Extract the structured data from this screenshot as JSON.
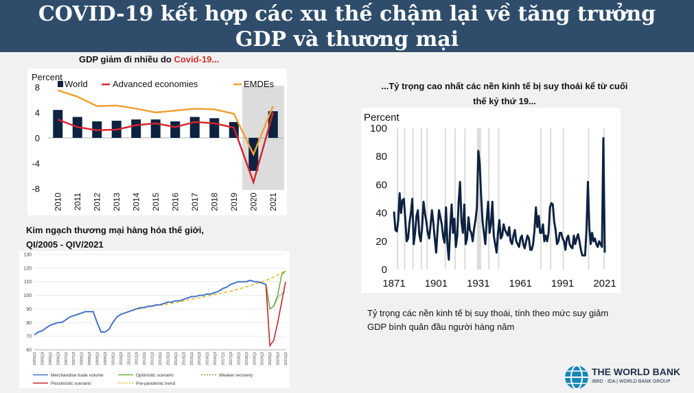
{
  "slide": {
    "title_line1": "COVID-19 kết hợp các xu thế chậm lại về tăng trưởng",
    "title_line2": "GDP và thương mại"
  },
  "chart1_heading_prefix": "GDP giảm đi nhiều do ",
  "chart1_heading_highlight": "Covid-19...",
  "chart2_heading_line1": "Kim ngạch thương mại hàng hóa thế giới,",
  "chart2_heading_line2": "QI/2005 - QIV/2021",
  "chart3_heading_line1": "...Tỷ trọng cao nhất các nền kinh tế bị suy thoái kể từ cuối",
  "chart3_heading_line2": "thế kỷ thứ 19...",
  "chart3_note_line1": "Tỷ trọng các nền kinh tế bị suy thoái, tính theo mức suy giảm",
  "chart3_note_line2": "GDP bình quân đầu người hàng năm",
  "logo": {
    "name": "THE WORLD BANK",
    "sub": "IBRD · IDA | WORLD BANK GROUP"
  },
  "chart_data": [
    {
      "id": "gdp",
      "type": "bar",
      "ylabel": "Percent",
      "ylim": [
        -8,
        8
      ],
      "yticks": [
        8,
        4,
        0,
        -4,
        -8
      ],
      "categories": [
        "2010",
        "2011",
        "2012",
        "2013",
        "2014",
        "2015",
        "2016",
        "2017",
        "2018",
        "2019",
        "2020",
        "2021"
      ],
      "series": [
        {
          "name": "World",
          "type": "bar",
          "color": "#0d2240",
          "values": [
            4.4,
            3.3,
            2.6,
            2.7,
            2.9,
            2.9,
            2.6,
            3.3,
            3.1,
            2.5,
            -5.2,
            4.2
          ]
        },
        {
          "name": "Advanced economies",
          "type": "line",
          "color": "#d4252f",
          "values": [
            2.9,
            1.7,
            1.2,
            1.3,
            2.0,
            2.3,
            1.7,
            2.5,
            2.3,
            1.6,
            -7.0,
            4.0
          ]
        },
        {
          "name": "EMDEs",
          "type": "line",
          "color": "#f0a030",
          "values": [
            7.5,
            6.5,
            5.0,
            5.1,
            4.6,
            4.0,
            4.3,
            4.6,
            4.5,
            3.8,
            -2.6,
            5.0
          ]
        }
      ],
      "shaded_category": "2020",
      "legend": "top"
    },
    {
      "id": "trade",
      "type": "line",
      "ylim": [
        60,
        130
      ],
      "yticks": [
        130,
        120,
        110,
        100,
        90,
        80,
        70,
        60
      ],
      "categories": [
        "2005Q1",
        "2005Q3",
        "2006Q1",
        "2006Q3",
        "2007Q1",
        "2007Q3",
        "2008Q1",
        "2008Q3",
        "2009Q1",
        "2009Q3",
        "2010Q1",
        "2010Q3",
        "2011Q1",
        "2011Q3",
        "2012Q1",
        "2012Q3",
        "2013Q1",
        "2013Q3",
        "2014Q1",
        "2014Q3",
        "2015Q1",
        "2015Q3",
        "2016Q1",
        "2016Q3",
        "2017Q1",
        "2017Q3",
        "2018Q1",
        "2018Q3",
        "2019Q1",
        "2019Q3",
        "2020Q1",
        "2020Q3",
        "2021Q1",
        "2021Q3"
      ],
      "series": [
        {
          "name": "Merchandise trade volume",
          "color": "#4472c4",
          "x": [
            0,
            1,
            2,
            3,
            4,
            5,
            6,
            7,
            8,
            9,
            10,
            11,
            12,
            13,
            14,
            15,
            16,
            17,
            18,
            19,
            20,
            21,
            22,
            23,
            24,
            25,
            26,
            27,
            28,
            29,
            30,
            31,
            32,
            33,
            34,
            35,
            36,
            37,
            38,
            39,
            40,
            41,
            42,
            43,
            44,
            45,
            46,
            47,
            48,
            49,
            50,
            51,
            52,
            53,
            54,
            55,
            56,
            57,
            58,
            59
          ],
          "values": [
            71,
            73,
            74,
            76,
            78,
            79,
            80,
            80,
            82,
            84,
            85,
            86,
            87,
            88,
            88,
            88,
            80,
            73,
            73,
            75,
            80,
            84,
            86,
            87,
            88,
            89,
            90,
            91,
            91,
            92,
            92,
            93,
            93,
            94,
            95,
            95,
            96,
            96,
            97,
            98,
            99,
            99,
            100,
            100,
            101,
            101,
            102,
            103,
            105,
            106,
            108,
            109,
            110,
            110,
            110,
            111,
            110,
            110,
            109,
            108
          ]
        },
        {
          "name": "Optimistic scenario",
          "color": "#70ad47",
          "x": [
            59,
            60,
            61,
            62,
            63,
            64
          ],
          "values": [
            108,
            90,
            92,
            100,
            115,
            118
          ]
        },
        {
          "name": "Weaker recovery",
          "color": "#7f9a48",
          "dashed": true,
          "x": [
            59,
            60,
            61,
            62,
            63,
            64
          ],
          "values": [
            108,
            90,
            92,
            98,
            101,
            103
          ]
        },
        {
          "name": "Pessimistic scenario",
          "color": "#c0262d",
          "x": [
            59,
            60,
            61,
            62,
            63,
            64
          ],
          "values": [
            108,
            63,
            67,
            80,
            95,
            110
          ]
        },
        {
          "name": "Pre-pandemic trend",
          "color": "#e8b830",
          "dashed": true,
          "x": [
            25,
            30,
            35,
            40,
            45,
            50,
            55,
            60,
            64
          ],
          "values": [
            89,
            92,
            94,
            97,
            100,
            103,
            107,
            112,
            118
          ]
        }
      ],
      "legend": "bottom"
    },
    {
      "id": "recession",
      "type": "line",
      "ylabel": "Percent",
      "ylim": [
        0,
        100
      ],
      "yticks": [
        100,
        80,
        60,
        40,
        20,
        0
      ],
      "xticks": [
        1871,
        1901,
        1931,
        1961,
        1991,
        2021
      ],
      "xlim": [
        1871,
        2021
      ],
      "color": "#0d2240",
      "shaded_years": [
        [
          1873,
          1874
        ],
        [
          1878,
          1879
        ],
        [
          1884,
          1885
        ],
        [
          1890,
          1891
        ],
        [
          1894,
          1895
        ],
        [
          1907,
          1908
        ],
        [
          1914,
          1915
        ],
        [
          1921,
          1922
        ],
        [
          1930,
          1933
        ],
        [
          1938,
          1939
        ],
        [
          1945,
          1946
        ],
        [
          1975,
          1976
        ],
        [
          1982,
          1983
        ],
        [
          1991,
          1992
        ],
        [
          2009,
          2010
        ],
        [
          2020,
          2021
        ]
      ],
      "x": [
        1871,
        1872,
        1873,
        1874,
        1875,
        1876,
        1877,
        1878,
        1879,
        1880,
        1881,
        1882,
        1883,
        1884,
        1885,
        1886,
        1887,
        1888,
        1889,
        1890,
        1891,
        1892,
        1893,
        1894,
        1895,
        1896,
        1897,
        1898,
        1899,
        1900,
        1901,
        1902,
        1903,
        1904,
        1905,
        1906,
        1907,
        1908,
        1909,
        1910,
        1911,
        1912,
        1913,
        1914,
        1915,
        1916,
        1917,
        1918,
        1919,
        1920,
        1921,
        1922,
        1923,
        1924,
        1925,
        1926,
        1927,
        1928,
        1929,
        1930,
        1931,
        1932,
        1933,
        1934,
        1935,
        1936,
        1937,
        1938,
        1939,
        1940,
        1941,
        1942,
        1943,
        1944,
        1945,
        1946,
        1947,
        1948,
        1949,
        1950,
        1951,
        1952,
        1953,
        1954,
        1955,
        1956,
        1957,
        1958,
        1959,
        1960,
        1961,
        1962,
        1963,
        1964,
        1965,
        1966,
        1967,
        1968,
        1969,
        1970,
        1971,
        1972,
        1973,
        1974,
        1975,
        1976,
        1977,
        1978,
        1979,
        1980,
        1981,
        1982,
        1983,
        1984,
        1985,
        1986,
        1987,
        1988,
        1989,
        1990,
        1991,
        1992,
        1993,
        1994,
        1995,
        1996,
        1997,
        1998,
        1999,
        2000,
        2001,
        2002,
        2003,
        2004,
        2005,
        2006,
        2007,
        2008,
        2009,
        2010,
        2011,
        2012,
        2013,
        2014,
        2015,
        2016,
        2017,
        2018,
        2019,
        2020,
        2021
      ],
      "values": [
        41,
        28,
        27,
        35,
        54,
        40,
        49,
        50,
        36,
        20,
        22,
        33,
        40,
        50,
        18,
        26,
        38,
        42,
        25,
        20,
        30,
        48,
        40,
        34,
        26,
        22,
        31,
        42,
        33,
        22,
        12,
        28,
        42,
        37,
        32,
        23,
        19,
        44,
        18,
        7,
        30,
        46,
        26,
        36,
        16,
        24,
        48,
        62,
        34,
        26,
        46,
        18,
        22,
        37,
        28,
        26,
        20,
        29,
        35,
        44,
        84,
        75,
        52,
        34,
        26,
        18,
        35,
        48,
        26,
        32,
        48,
        24,
        18,
        12,
        26,
        35,
        22,
        24,
        32,
        28,
        26,
        24,
        30,
        20,
        18,
        24,
        28,
        20,
        18,
        16,
        22,
        24,
        18,
        15,
        20,
        24,
        22,
        14,
        14,
        18,
        28,
        44,
        30,
        38,
        26,
        26,
        32,
        20,
        24,
        20,
        26,
        44,
        47,
        46,
        34,
        28,
        18,
        20,
        26,
        26,
        22,
        20,
        14,
        22,
        24,
        18,
        16,
        15,
        24,
        18,
        22,
        25,
        20,
        14,
        10,
        10,
        10,
        28,
        62,
        30,
        18,
        26,
        20,
        22,
        18,
        16,
        20,
        18,
        16,
        93,
        12
      ]
    }
  ]
}
